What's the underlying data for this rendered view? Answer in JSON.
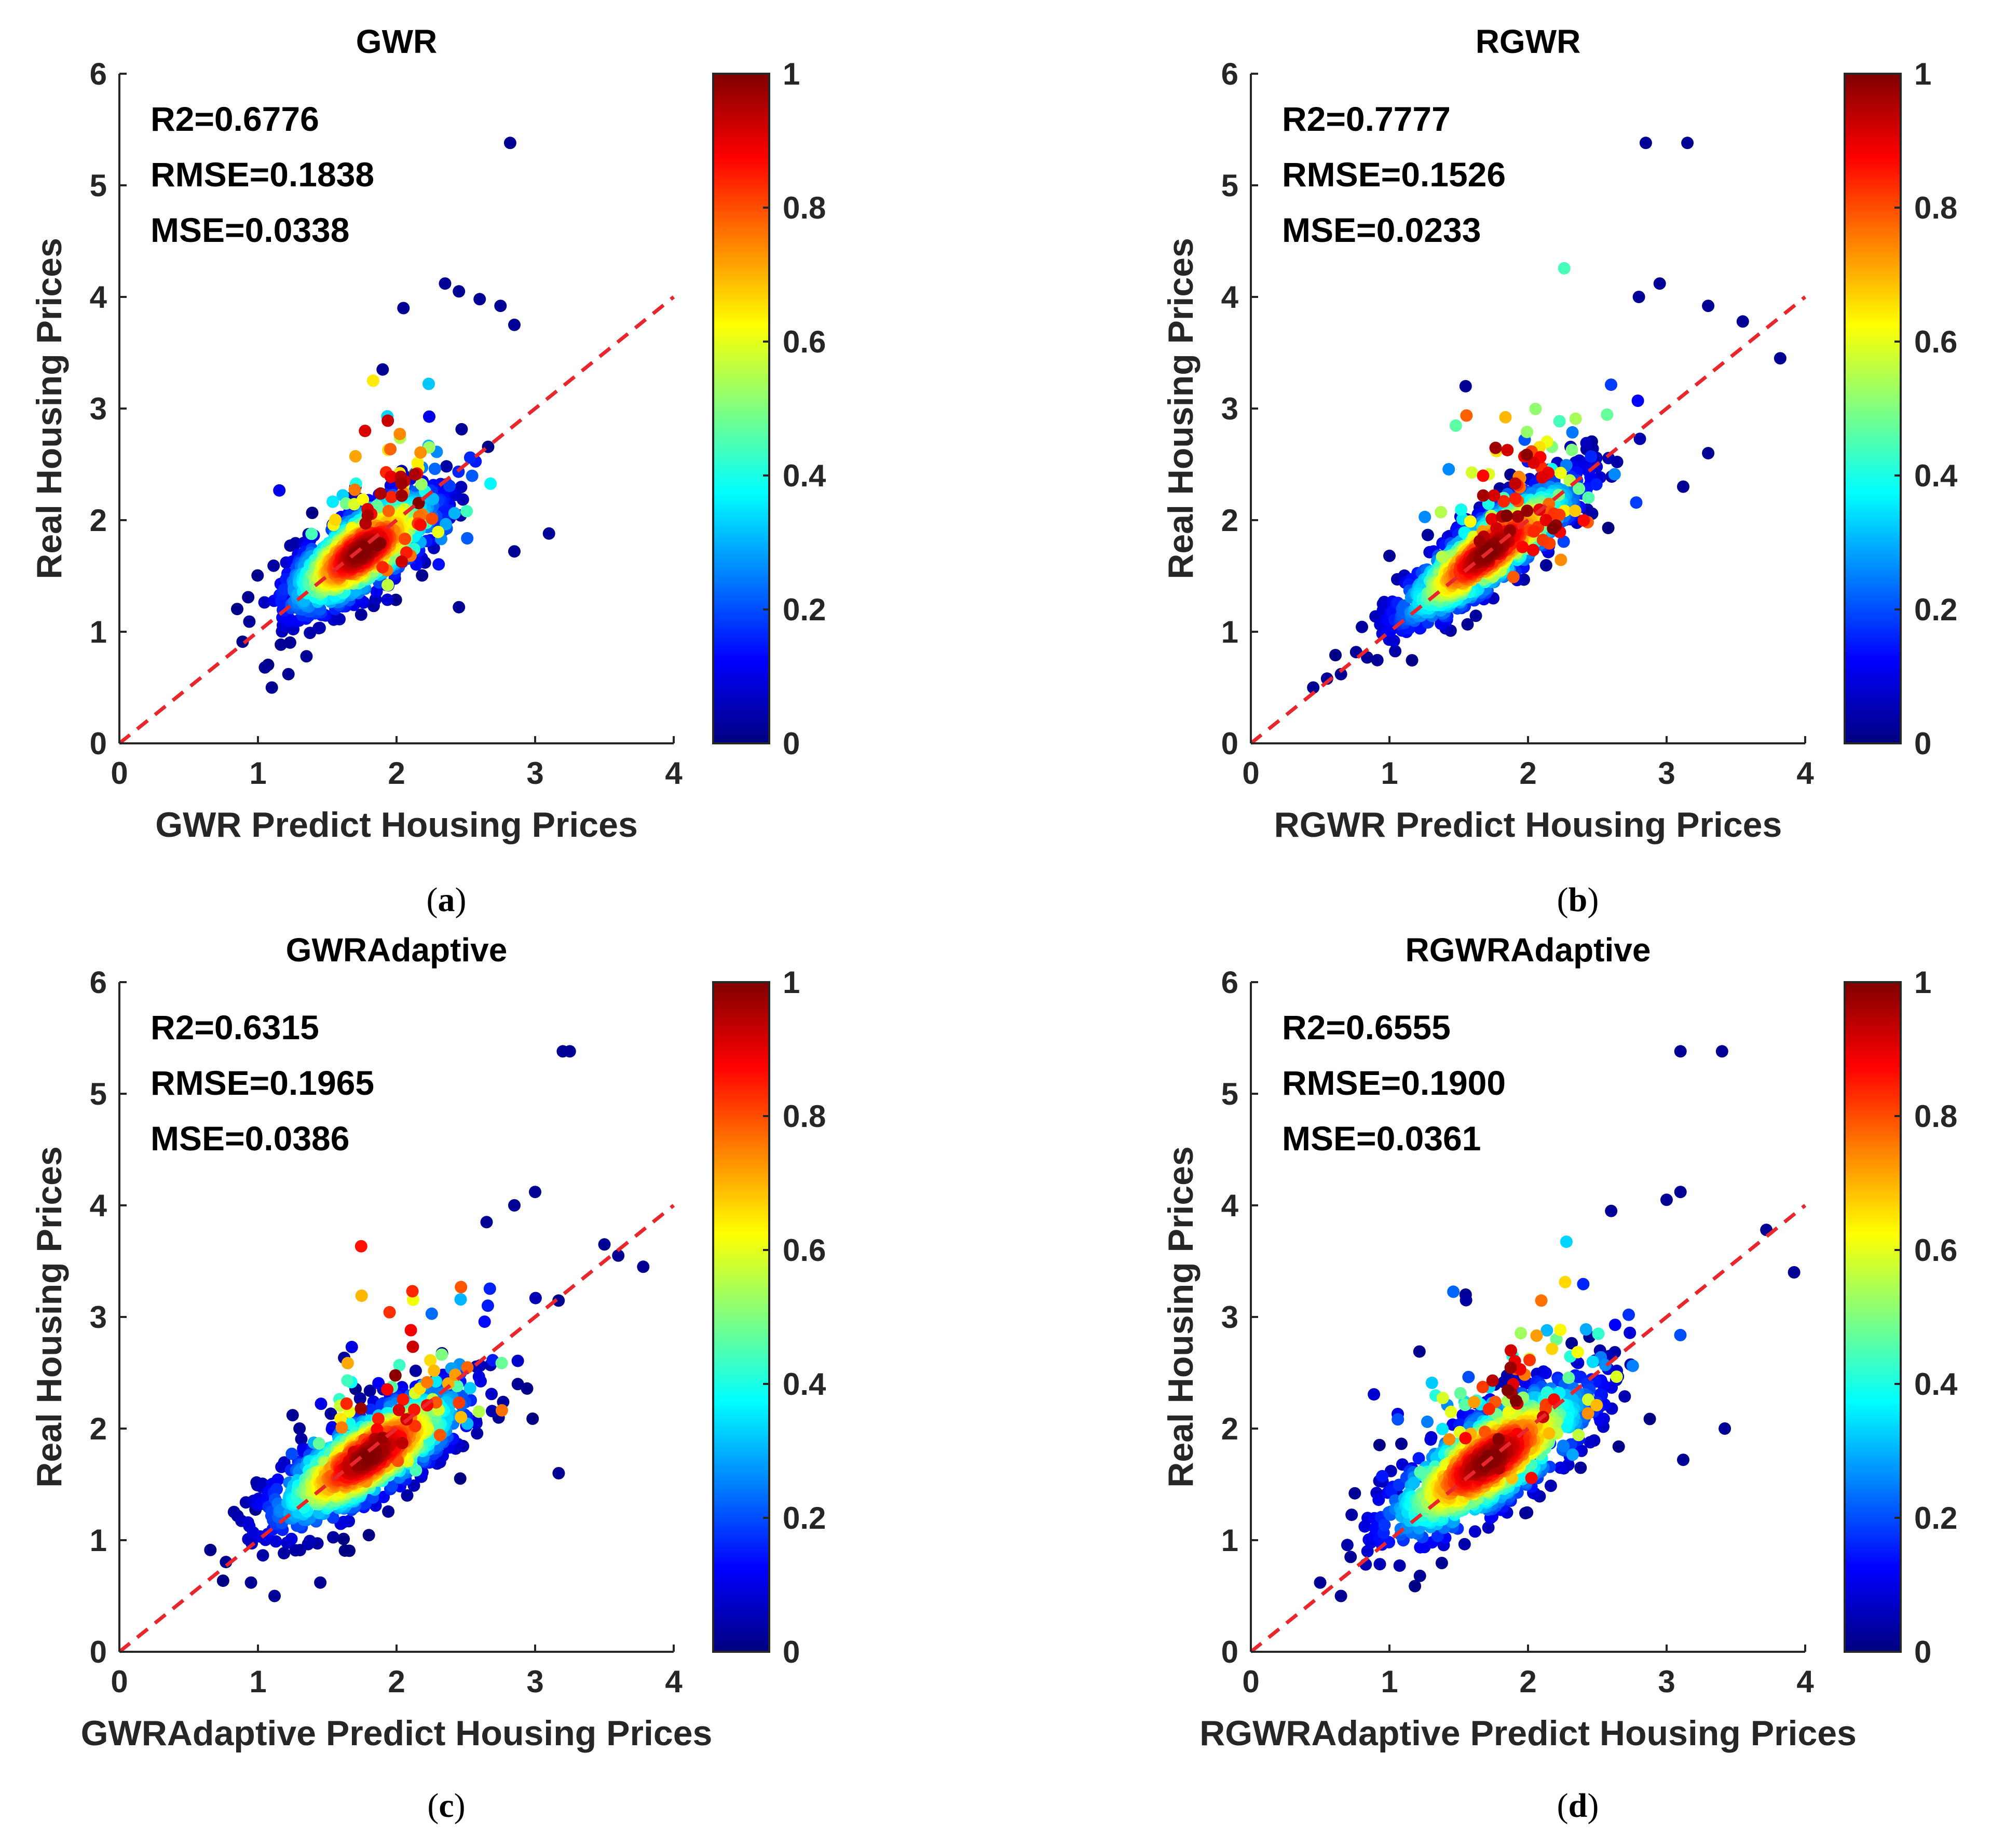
{
  "figure": {
    "colormap": "jet",
    "reference_line_color": "#e8262b",
    "panels": [
      {
        "id": "a",
        "title": "GWR",
        "xlabel": "GWR Predict Housing Prices",
        "ylabel": "Real Housing Prices",
        "caption_open": "(",
        "caption_letter": "a",
        "caption_close": ")",
        "stats": [
          "R2=0.6776",
          "RMSE=0.1838",
          "MSE=0.0338"
        ]
      },
      {
        "id": "b",
        "title": "RGWR",
        "xlabel": "RGWR Predict Housing Prices",
        "ylabel": "Real Housing Prices",
        "caption_open": "(",
        "caption_letter": "b",
        "caption_close": ")",
        "stats": [
          "R2=0.7777",
          "RMSE=0.1526",
          "MSE=0.0233"
        ]
      },
      {
        "id": "c",
        "title": "GWRAdaptive",
        "xlabel": "GWRAdaptive Predict Housing Prices",
        "ylabel": "Real Housing Prices",
        "caption_open": "(",
        "caption_letter": "c",
        "caption_close": ")",
        "stats": [
          "R2=0.6315",
          "RMSE=0.1965",
          "MSE=0.0386"
        ]
      },
      {
        "id": "d",
        "title": "RGWRAdaptive",
        "xlabel": "RGWRAdaptive Predict Housing Prices",
        "ylabel": "Real Housing Prices",
        "caption_open": "(",
        "caption_letter": "d",
        "caption_close": ")",
        "stats": [
          "R2=0.6555",
          "RMSE=0.1900",
          "MSE=0.0361"
        ]
      }
    ]
  },
  "chart_data": [
    {
      "type": "scatter",
      "title": "GWR",
      "xlabel": "GWR Predict Housing Prices",
      "ylabel": "Real Housing Prices",
      "xlim": [
        0,
        4
      ],
      "ylim": [
        0,
        6
      ],
      "xticks": [
        "0",
        "1",
        "2",
        "3",
        "4"
      ],
      "yticks": [
        "0",
        "1",
        "2",
        "3",
        "4",
        "5",
        "6"
      ],
      "colorbar": {
        "range": [
          0,
          1
        ],
        "ticks": [
          "0",
          "0.2",
          "0.4",
          "0.6",
          "0.8",
          "1"
        ]
      },
      "reference_line": {
        "from": [
          0,
          0
        ],
        "to": [
          4,
          4
        ]
      },
      "annotations": [
        "R2=0.6776",
        "RMSE=0.1838",
        "MSE=0.0338"
      ],
      "points_description": "~1000 points colored by density (jet), densest near (1.75, 1.75)",
      "cluster_center": [
        1.75,
        1.72
      ],
      "cluster_spread": [
        0.28,
        0.28
      ],
      "correlation": 0.72,
      "outliers": [
        [
          2.82,
          5.38
        ],
        [
          2.35,
          4.12
        ],
        [
          2.45,
          4.05
        ],
        [
          2.6,
          3.98
        ],
        [
          2.75,
          3.92
        ],
        [
          2.85,
          3.75
        ],
        [
          2.05,
          3.9
        ],
        [
          3.1,
          1.88
        ],
        [
          2.85,
          1.72
        ],
        [
          1.1,
          0.5
        ],
        [
          1.05,
          0.68
        ],
        [
          1.22,
          0.62
        ],
        [
          1.35,
          0.78
        ],
        [
          2.45,
          1.22
        ],
        [
          1.9,
          3.35
        ]
      ]
    },
    {
      "type": "scatter",
      "title": "RGWR",
      "xlabel": "RGWR Predict Housing Prices",
      "ylabel": "Real Housing Prices",
      "xlim": [
        0,
        4
      ],
      "ylim": [
        0,
        6
      ],
      "xticks": [
        "0",
        "1",
        "2",
        "3",
        "4"
      ],
      "yticks": [
        "0",
        "1",
        "2",
        "3",
        "4",
        "5",
        "6"
      ],
      "colorbar": {
        "range": [
          0,
          1
        ],
        "ticks": [
          "0",
          "0.2",
          "0.4",
          "0.6",
          "0.8",
          "1"
        ]
      },
      "reference_line": {
        "from": [
          0,
          0
        ],
        "to": [
          4,
          4
        ]
      },
      "annotations": [
        "R2=0.7777",
        "RMSE=0.1526",
        "MSE=0.0233"
      ],
      "points_description": "~1000 points colored by density (jet), densest near (1.7, 1.7)",
      "cluster_center": [
        1.72,
        1.72
      ],
      "cluster_spread": [
        0.33,
        0.33
      ],
      "correlation": 0.85,
      "outliers": [
        [
          2.85,
          5.38
        ],
        [
          3.15,
          5.38
        ],
        [
          2.95,
          4.12
        ],
        [
          2.8,
          4.0
        ],
        [
          3.3,
          3.92
        ],
        [
          3.55,
          3.78
        ],
        [
          3.82,
          3.45
        ],
        [
          3.3,
          2.6
        ],
        [
          0.45,
          0.5
        ],
        [
          0.65,
          0.62
        ],
        [
          0.55,
          0.58
        ],
        [
          1.0,
          1.68
        ],
        [
          1.55,
          3.2
        ],
        [
          3.12,
          2.3
        ]
      ]
    },
    {
      "type": "scatter",
      "title": "GWRAdaptive",
      "xlabel": "GWRAdaptive Predict Housing Prices",
      "ylabel": "Real Housing Prices",
      "xlim": [
        0,
        4
      ],
      "ylim": [
        0,
        6
      ],
      "xticks": [
        "0",
        "1",
        "2",
        "3",
        "4"
      ],
      "yticks": [
        "0",
        "1",
        "2",
        "3",
        "4",
        "5",
        "6"
      ],
      "colorbar": {
        "range": [
          0,
          1
        ],
        "ticks": [
          "0",
          "0.2",
          "0.4",
          "0.6",
          "0.8",
          "1"
        ]
      },
      "reference_line": {
        "from": [
          0,
          0
        ],
        "to": [
          4,
          4
        ]
      },
      "annotations": [
        "R2=0.6315",
        "RMSE=0.1965",
        "MSE=0.0386"
      ],
      "points_description": "~1000 points colored by density (jet), densest near (1.8, 1.75)",
      "cluster_center": [
        1.8,
        1.75
      ],
      "cluster_spread": [
        0.36,
        0.32
      ],
      "correlation": 0.78,
      "outliers": [
        [
          3.2,
          5.38
        ],
        [
          3.25,
          5.38
        ],
        [
          3.0,
          4.12
        ],
        [
          2.85,
          4.0
        ],
        [
          3.5,
          3.65
        ],
        [
          3.78,
          3.45
        ],
        [
          3.6,
          3.55
        ],
        [
          3.17,
          1.6
        ],
        [
          1.12,
          0.5
        ],
        [
          0.95,
          0.62
        ],
        [
          1.45,
          0.62
        ],
        [
          2.65,
          3.85
        ],
        [
          1.25,
          2.12
        ],
        [
          1.3,
          2.0
        ]
      ]
    },
    {
      "type": "scatter",
      "title": "RGWRAdaptive",
      "xlabel": "RGWRAdaptive Predict Housing Prices",
      "ylabel": "Real Housing Prices",
      "xlim": [
        0,
        4
      ],
      "ylim": [
        0,
        6
      ],
      "xticks": [
        "0",
        "1",
        "2",
        "3",
        "4"
      ],
      "yticks": [
        "0",
        "1",
        "2",
        "3",
        "4",
        "5",
        "6"
      ],
      "colorbar": {
        "range": [
          0,
          1
        ],
        "ticks": [
          "0",
          "0.2",
          "0.4",
          "0.6",
          "0.8",
          "1"
        ]
      },
      "reference_line": {
        "from": [
          0,
          0
        ],
        "to": [
          4,
          4
        ]
      },
      "annotations": [
        "R2=0.6555",
        "RMSE=0.1900",
        "MSE=0.0361"
      ],
      "points_description": "~1000 points colored by density (jet), densest near (1.7, 1.72)",
      "cluster_center": [
        1.72,
        1.72
      ],
      "cluster_spread": [
        0.38,
        0.36
      ],
      "correlation": 0.76,
      "outliers": [
        [
          3.1,
          5.38
        ],
        [
          3.4,
          5.38
        ],
        [
          3.1,
          4.12
        ],
        [
          3.0,
          4.05
        ],
        [
          3.72,
          3.78
        ],
        [
          3.92,
          3.4
        ],
        [
          3.42,
          2.0
        ],
        [
          3.12,
          1.72
        ],
        [
          0.5,
          0.62
        ],
        [
          0.65,
          0.5
        ],
        [
          0.72,
          0.85
        ],
        [
          1.22,
          0.68
        ],
        [
          0.75,
          1.42
        ],
        [
          1.55,
          3.2
        ],
        [
          2.6,
          3.95
        ]
      ]
    }
  ]
}
